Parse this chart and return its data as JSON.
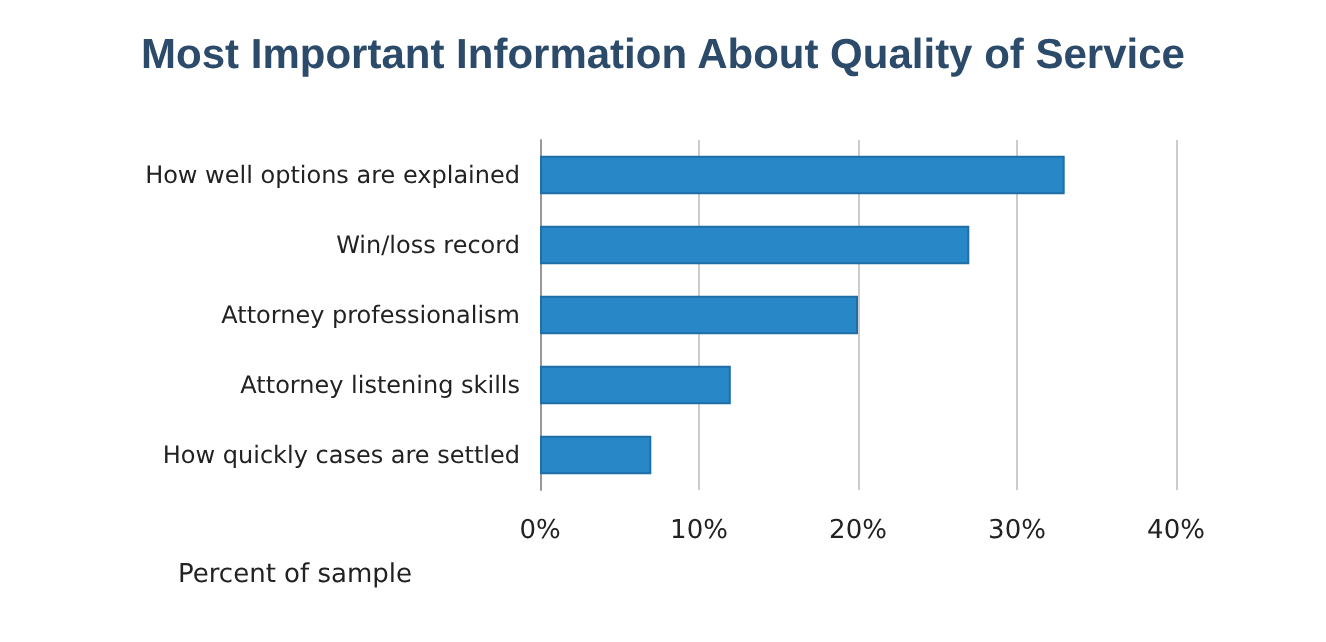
{
  "chart_data": {
    "type": "bar",
    "orientation": "horizontal",
    "title": "Most Important Information About Quality of Service",
    "xlabel": "Percent of sample",
    "categories": [
      "How well options are explained",
      "Win/loss record",
      "Attorney professionalism",
      "Attorney listening skills",
      "How quickly cases are settled"
    ],
    "values": [
      33,
      27,
      20,
      12,
      7
    ],
    "color": "#2787c7",
    "xlim": [
      0,
      40
    ],
    "xticks": [
      {
        "value": 0,
        "label": "0%"
      },
      {
        "value": 10,
        "label": "10%"
      },
      {
        "value": 20,
        "label": "20%"
      },
      {
        "value": 30,
        "label": "30%"
      },
      {
        "value": 40,
        "label": "40%"
      }
    ],
    "grid": "x"
  }
}
